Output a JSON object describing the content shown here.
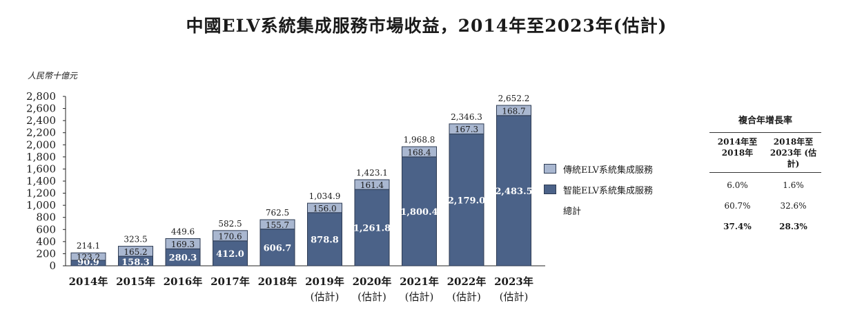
{
  "title": "中國ELV系統集成服務市場收益，2014年至2023年(估計)",
  "unit_label": "人民幣十億元",
  "colors": {
    "traditional": "#a9b7d0",
    "smart": "#4b6288",
    "outline": "#2c3a52"
  },
  "legend": {
    "traditional": "傳統ELV系統集成服務",
    "smart": "智能ELV系統集成服務",
    "total": "總計"
  },
  "cagr_table": {
    "caption": "複合年增長率",
    "col1_header_line1": "2014年至",
    "col1_header_line2": "2018年",
    "col2_header_line1": "2018年至",
    "col2_header_line2": "2023年 (估計)",
    "rows": [
      {
        "c1": "6.0%",
        "c2": "1.6%"
      },
      {
        "c1": "60.7%",
        "c2": "32.6%"
      },
      {
        "c1": "37.4%",
        "c2": "28.3%"
      }
    ]
  },
  "chart_data": {
    "type": "bar",
    "stacked": true,
    "categories": [
      "2014年",
      "2015年",
      "2016年",
      "2017年",
      "2018年",
      "2019年(估計)",
      "2020年(估計)",
      "2021年(估計)",
      "2022年(估計)",
      "2023年(估計)"
    ],
    "series": [
      {
        "name": "智能ELV系統集成服務",
        "values": [
          90.9,
          158.3,
          280.3,
          412.0,
          606.7,
          878.8,
          1261.8,
          1800.4,
          2179.0,
          2483.5
        ]
      },
      {
        "name": "傳統ELV系統集成服務",
        "values": [
          123.2,
          165.2,
          169.3,
          170.6,
          155.7,
          156.0,
          161.4,
          168.4,
          167.3,
          168.7
        ]
      }
    ],
    "totals": [
      214.1,
      323.5,
      449.6,
      582.5,
      762.5,
      1034.9,
      1423.1,
      1968.8,
      2346.3,
      2652.2
    ],
    "smart_labels": [
      "90.9",
      "158.3",
      "280.3",
      "412.0",
      "606.7",
      "878.8",
      "1,261.8",
      "1,800.4",
      "2,179.0",
      "2,483.5"
    ],
    "traditional_labels": [
      "123.2",
      "165.2",
      "169.3",
      "170.6",
      "155.7",
      "156.0",
      "161.4",
      "168.4",
      "167.3",
      "168.7"
    ],
    "total_labels": [
      "214.1",
      "323.5",
      "449.6",
      "582.5",
      "762.5",
      "1,034.9",
      "1,423.1",
      "1,968.8",
      "2,346.3",
      "2,652.2"
    ],
    "xtick_line1": [
      "2014年",
      "2015年",
      "2016年",
      "2017年",
      "2018年",
      "2019年",
      "2020年",
      "2021年",
      "2022年",
      "2023年"
    ],
    "xtick_line2": [
      "",
      "",
      "",
      "",
      "",
      "(估計)",
      "(估計)",
      "(估計)",
      "(估計)",
      "(估計)"
    ],
    "yticks": [
      0,
      200,
      400,
      600,
      800,
      1000,
      1200,
      1400,
      1600,
      1800,
      2000,
      2200,
      2400,
      2600,
      2800
    ],
    "ytick_labels": [
      "0",
      "200",
      "400",
      "600",
      "800",
      "1,000",
      "1,200",
      "1,400",
      "1,600",
      "1,800",
      "2,000",
      "2,200",
      "2,400",
      "2,600",
      "2,800"
    ],
    "ylim": [
      0,
      2800
    ],
    "ylabel": "人民幣十億元",
    "grid": false,
    "legend_position": "right"
  }
}
